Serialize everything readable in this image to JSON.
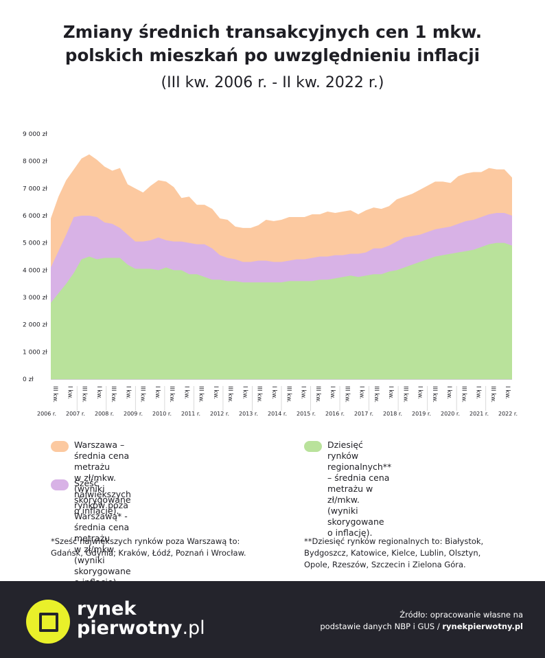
{
  "title_line1": "Zmiany średnich transakcyjnych cen 1 mkw.",
  "title_line2": "polskich mieszkań po uwzględnieniu inflacji",
  "subtitle": "(III kw. 2006 r. - II kw. 2022 r.)",
  "colors": {
    "warszawa": "#fcc9a0",
    "six_markets": "#d8b2e6",
    "ten_markets": "#b9e29b",
    "footer_bg": "#24242c",
    "logo_accent": "#e9f02a"
  },
  "chart_data": {
    "type": "area",
    "stacking": "overlay",
    "title": "Zmiany średnich transakcyjnych cen 1 mkw. polskich mieszkań po uwzględnieniu inflacji",
    "ylim": [
      0,
      9000
    ],
    "yticks": [
      0,
      1000,
      2000,
      3000,
      4000,
      5000,
      6000,
      7000,
      8000,
      9000
    ],
    "ytick_labels": [
      "0 zł",
      "1 000 zł",
      "2 000 zł",
      "3 000 zł",
      "4 000 zł",
      "5 000 zł",
      "6 000 zł",
      "7 000 zł",
      "8 000 zł",
      "9 000 zł"
    ],
    "quarter_labels": [
      "III kw.",
      "I kw.",
      "III kw.",
      "I kw.",
      "III kw.",
      "I kw.",
      "III kw.",
      "I kw.",
      "III kw.",
      "I kw.",
      "III kw.",
      "I kw.",
      "III kw.",
      "I kw.",
      "III kw.",
      "I kw.",
      "III kw.",
      "I kw.",
      "III kw.",
      "I kw.",
      "III kw.",
      "I kw.",
      "III kw.",
      "I kw.",
      "III kw.",
      "I kw.",
      "III kw.",
      "I kw.",
      "III kw.",
      "I kw.",
      "III kw.",
      "I kw."
    ],
    "year_labels": [
      "2006 r.",
      "2007 r.",
      "2008 r.",
      "2009 r.",
      "2010 r.",
      "2011 r.",
      "2012 r.",
      "2013 r.",
      "2014 r.",
      "2015 r.",
      "2016 r.",
      "2017 r.",
      "2018 r.",
      "2019 r.",
      "2020 r.",
      "2021 r.",
      "2022 r."
    ],
    "series": [
      {
        "name": "Warszawa",
        "color_key": "warszawa",
        "values": [
          5900,
          6700,
          7300,
          7700,
          8100,
          8250,
          8050,
          7800,
          7650,
          7750,
          7150,
          7000,
          6850,
          7100,
          7300,
          7250,
          7050,
          6650,
          6700,
          6400,
          6400,
          6250,
          5900,
          5850,
          5600,
          5550,
          5550,
          5650,
          5850,
          5800,
          5850,
          5950,
          5950,
          5950,
          6050,
          6050,
          6150,
          6100,
          6150,
          6200,
          6050,
          6200,
          6300,
          6250,
          6350,
          6600,
          6700,
          6800,
          6950,
          7100,
          7250,
          7250,
          7200,
          7450,
          7550,
          7600,
          7600,
          7750,
          7700,
          7700,
          7400
        ]
      },
      {
        "name": "Sześć największych rynków poza Warszawą",
        "color_key": "six_markets",
        "values": [
          4100,
          4700,
          5300,
          5950,
          6000,
          6000,
          5950,
          5750,
          5700,
          5550,
          5300,
          5050,
          5050,
          5100,
          5200,
          5100,
          5050,
          5050,
          5000,
          4950,
          4950,
          4800,
          4550,
          4450,
          4400,
          4300,
          4300,
          4350,
          4350,
          4300,
          4300,
          4350,
          4400,
          4400,
          4450,
          4500,
          4500,
          4550,
          4550,
          4600,
          4600,
          4650,
          4800,
          4800,
          4900,
          5050,
          5200,
          5250,
          5300,
          5400,
          5500,
          5550,
          5600,
          5700,
          5800,
          5850,
          5950,
          6050,
          6100,
          6100,
          6000
        ]
      },
      {
        "name": "Dziesięć rynków regionalnych",
        "color_key": "ten_markets",
        "values": [
          2800,
          3150,
          3500,
          3900,
          4400,
          4500,
          4400,
          4450,
          4450,
          4450,
          4200,
          4050,
          4050,
          4050,
          4000,
          4100,
          4000,
          4000,
          3850,
          3850,
          3750,
          3650,
          3650,
          3600,
          3600,
          3550,
          3550,
          3550,
          3550,
          3550,
          3550,
          3600,
          3600,
          3600,
          3600,
          3650,
          3650,
          3700,
          3750,
          3800,
          3750,
          3800,
          3850,
          3850,
          3950,
          4000,
          4100,
          4200,
          4300,
          4400,
          4500,
          4550,
          4600,
          4650,
          4700,
          4750,
          4850,
          4950,
          5000,
          5000,
          4900
        ]
      }
    ]
  },
  "legend": {
    "warszawa": "Warszawa – średnia cena metrażu\nw zł/mkw.(wyniki skorygowane o inflację).",
    "six_markets": "Sześć największych rynków poza\nWarszawą* - średnia cena metrażu\nw zł/mkw. (wyniki skorygowane o inflację).",
    "ten_markets": "Dziesięć rynków regionalnych**\n– średnia cena metrażu w zł/mkw.\n(wyniki skorygowane o inflację)."
  },
  "notes": {
    "six_markets": "*Sześć największych rynków poza Warszawą to:\nGdańsk, Gdynia, Kraków, Łódź, Poznań i Wrocław.",
    "ten_markets": "**Dziesięć rynków regionalnych to: Białystok,\nBydgoszcz, Katowice, Kielce, Lublin, Olsztyn,\nOpole, Rzeszów, Szczecin i Zielona Góra."
  },
  "footer": {
    "logo_line1": "rynek",
    "logo_line2": "pierwotny",
    "logo_suffix": ".pl",
    "source_line1": "Źródło: opracowanie własne na",
    "source_line2_prefix": "podstawie danych NBP i GUS / ",
    "source_line2_bold": "rynekpierwotny.pl"
  }
}
